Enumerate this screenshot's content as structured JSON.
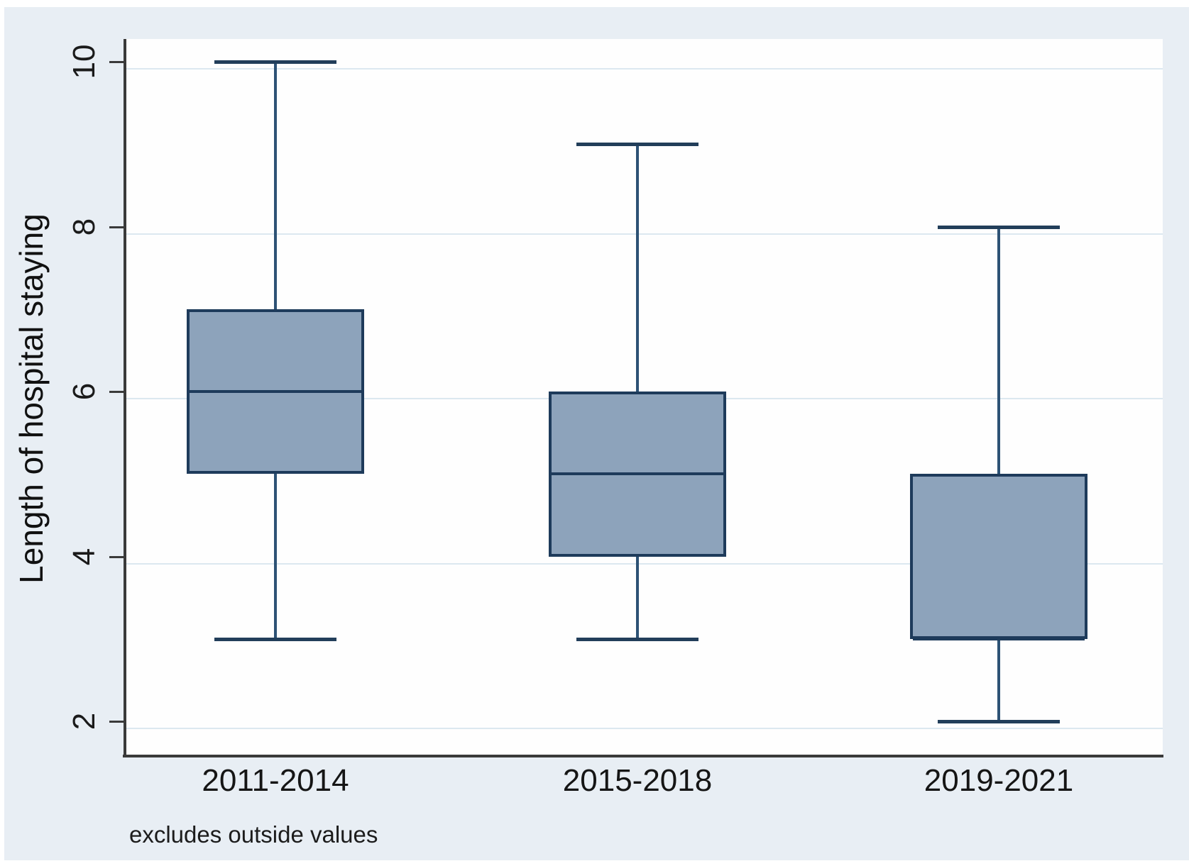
{
  "chart_data": {
    "type": "box",
    "title": "",
    "xlabel": "",
    "ylabel": "Length of hospital staying",
    "note": "excludes outside values",
    "categories": [
      "2011-2014",
      "2015-2018",
      "2019-2021"
    ],
    "yticks": [
      2,
      4,
      6,
      8,
      10
    ],
    "ylim": [
      1.66,
      10.36
    ],
    "grid": "horizontal-faint",
    "legend": "none",
    "series": [
      {
        "name": "2011-2014",
        "whisker_low": 3,
        "q1": 5,
        "median": 6,
        "q3": 7,
        "whisker_high": 10
      },
      {
        "name": "2015-2018",
        "whisker_low": 3,
        "q1": 4,
        "median": 5,
        "q3": 6,
        "whisker_high": 9
      },
      {
        "name": "2019-2021",
        "whisker_low": 2,
        "q1": 3,
        "median": 3,
        "q3": 5,
        "whisker_high": 8
      }
    ],
    "colors": {
      "figure_background": "#e8eef4",
      "plot_background": "#fefefe",
      "box_fill": "#8da3bb",
      "box_border": "#1e3b5b",
      "whisker_stem": "#2d5275",
      "whisker_cap": "#223e5a",
      "gridline": "#dce8f0",
      "axis": "#3a3a3a",
      "text": "#1a1a1a"
    }
  }
}
